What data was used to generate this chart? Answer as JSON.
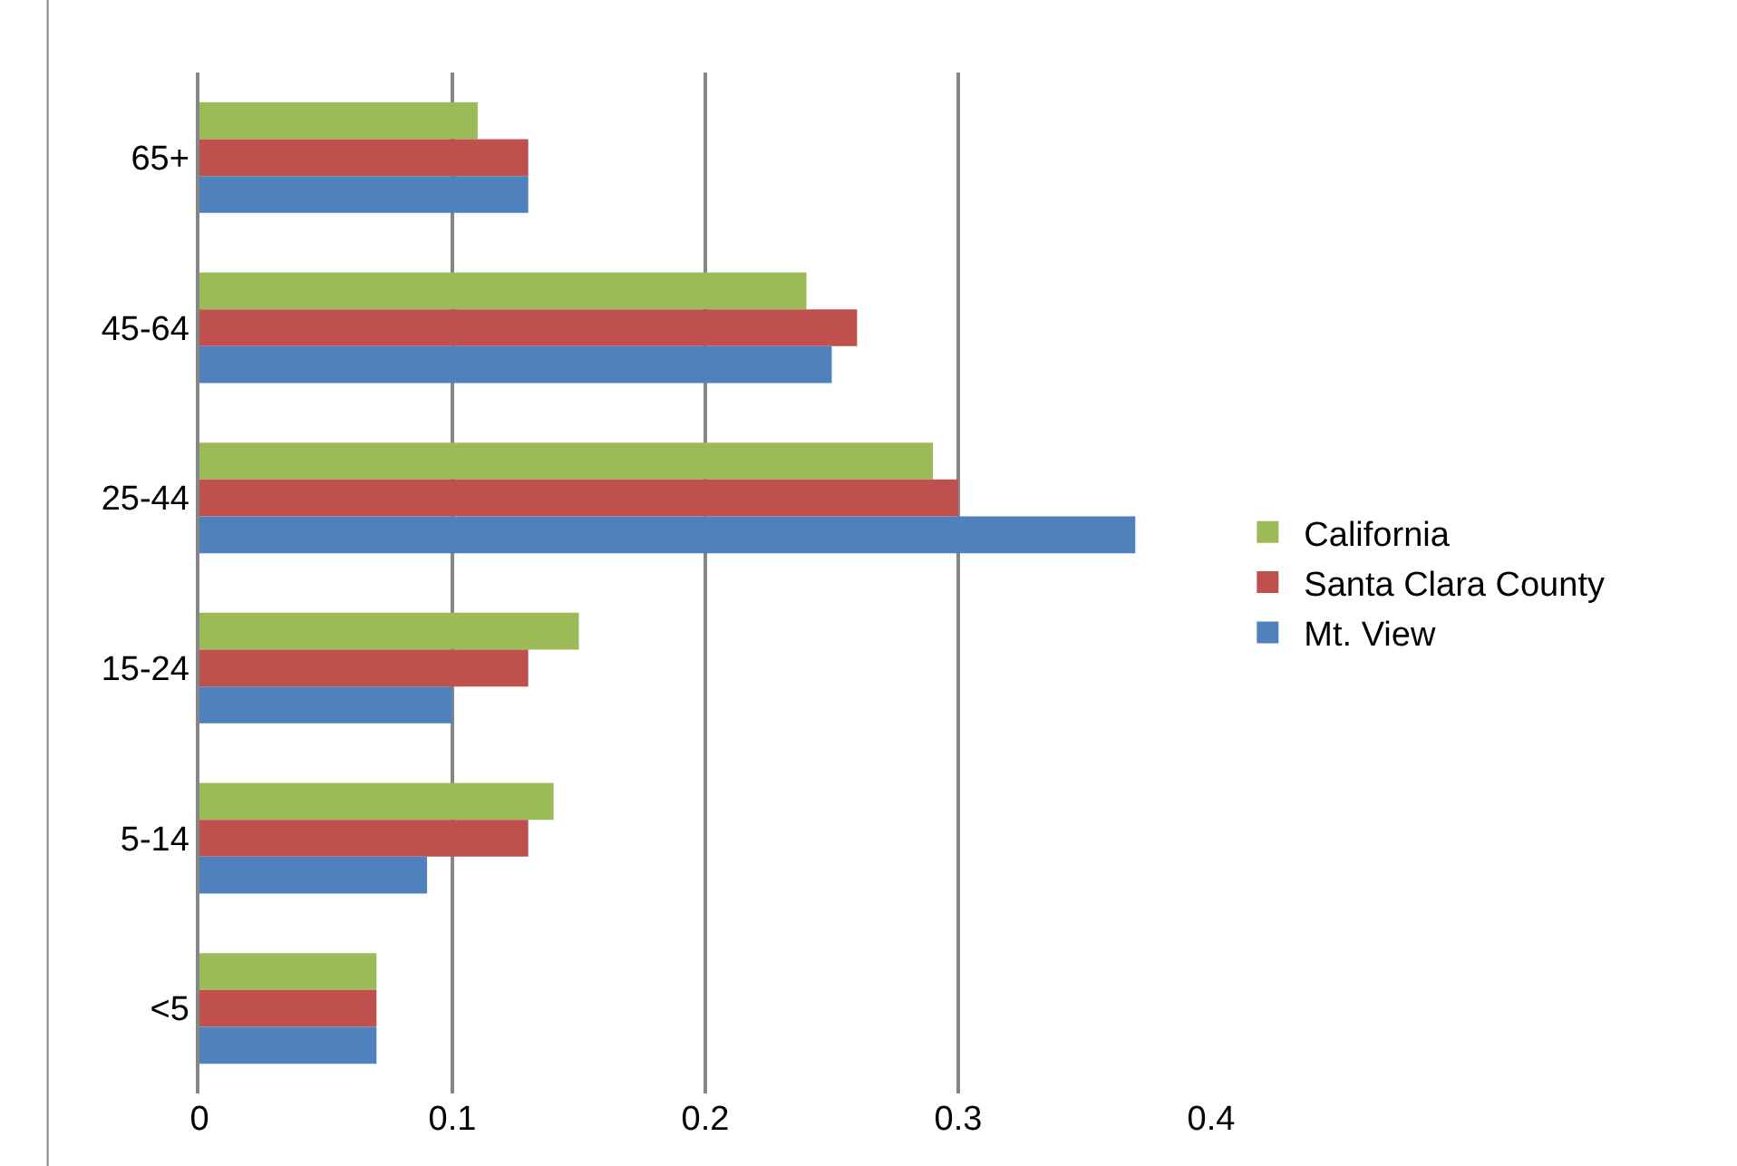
{
  "chart_data": {
    "type": "bar",
    "orientation": "horizontal",
    "categories": [
      "65+",
      "45-64",
      "25-44",
      "15-24",
      "5-14",
      "<5"
    ],
    "series": [
      {
        "name": "California",
        "color": "#9bbb59",
        "values": [
          0.11,
          0.24,
          0.29,
          0.15,
          0.14,
          0.07
        ]
      },
      {
        "name": "Santa Clara County",
        "color": "#c0504d",
        "values": [
          0.13,
          0.26,
          0.3,
          0.13,
          0.13,
          0.07
        ]
      },
      {
        "name": "Mt. View",
        "color": "#4f81bd",
        "values": [
          0.13,
          0.25,
          0.37,
          0.1,
          0.09,
          0.07
        ]
      }
    ],
    "xlim": [
      0,
      0.4
    ],
    "xticks": [
      0,
      0.1,
      0.2,
      0.3,
      0.4
    ],
    "grid": "x",
    "legend": "right"
  }
}
